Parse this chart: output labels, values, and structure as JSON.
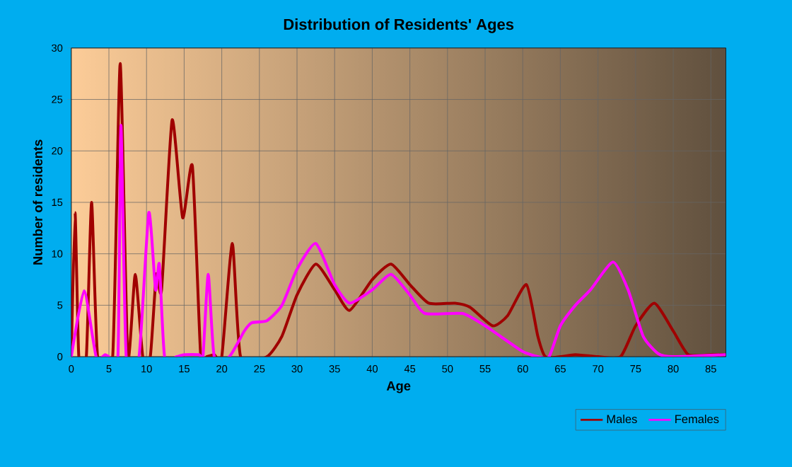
{
  "chart_data": {
    "type": "line",
    "title": "Distribution of Residents' Ages",
    "xlabel": "Age",
    "ylabel": "Number of residents",
    "xlim": [
      0,
      87
    ],
    "xticks": [
      0,
      5,
      10,
      15,
      20,
      25,
      30,
      35,
      40,
      45,
      50,
      55,
      60,
      65,
      70,
      75,
      80,
      85
    ],
    "ylim": [
      0,
      30
    ],
    "yticks": [
      0,
      5,
      10,
      15,
      20,
      25,
      30
    ],
    "grid": true,
    "legend": "bottom right",
    "marker": "none",
    "line_style": "solid",
    "series": [
      {
        "name": "Males",
        "color": "#a00000",
        "x": [
          0,
          0.5,
          1,
          2,
          2.7,
          3.5,
          5.5,
          6.5,
          7.5,
          8.5,
          9.5,
          10.5,
          11.3,
          12,
          13.4,
          14.8,
          16.1,
          17.2,
          18,
          19,
          20,
          21.4,
          22.5,
          26,
          28,
          30,
          32.5,
          35,
          37,
          40,
          42.5,
          45,
          47.5,
          51,
          53,
          56,
          58,
          60.5,
          62,
          63,
          65,
          67,
          70,
          73,
          75,
          77.5,
          80,
          82,
          85,
          87
        ],
        "values": [
          0,
          14,
          0,
          0,
          15,
          0,
          0,
          28.5,
          0,
          8,
          0,
          0,
          8,
          6.5,
          23,
          13.5,
          18.5,
          0,
          0,
          0.2,
          0,
          11,
          0,
          0,
          2,
          6,
          9,
          6.5,
          4.5,
          7.5,
          9,
          7,
          5.2,
          5.2,
          4.8,
          3,
          4,
          7,
          2,
          0,
          0,
          0.2,
          0,
          0,
          3,
          5.2,
          2.5,
          0.2,
          0.2,
          0.2
        ]
      },
      {
        "name": "Females",
        "color": "#ff00ff",
        "x": [
          0,
          1.7,
          3.3,
          4.5,
          5,
          6.2,
          6.6,
          7.3,
          9,
          10.3,
          11.2,
          11.7,
          12.4,
          14,
          15,
          17,
          17.5,
          18.2,
          19,
          21,
          23,
          24,
          26,
          28,
          30,
          32.5,
          35,
          37,
          40,
          42.5,
          45,
          47,
          52,
          55,
          57,
          60,
          62,
          63.5,
          65,
          67,
          69,
          72,
          74,
          76,
          78,
          80,
          87
        ],
        "values": [
          0,
          6.4,
          0,
          0.2,
          0,
          0,
          22.5,
          0,
          0,
          14,
          6.5,
          9,
          0,
          0,
          0.2,
          0.2,
          0,
          8,
          0,
          0,
          2.5,
          3.3,
          3.5,
          5,
          8.5,
          11,
          7,
          5.2,
          6.5,
          8,
          6,
          4.2,
          4.2,
          3,
          2,
          0.5,
          0,
          0,
          3,
          5,
          6.5,
          9.2,
          6.5,
          2,
          0.3,
          0,
          0.2
        ]
      }
    ]
  }
}
